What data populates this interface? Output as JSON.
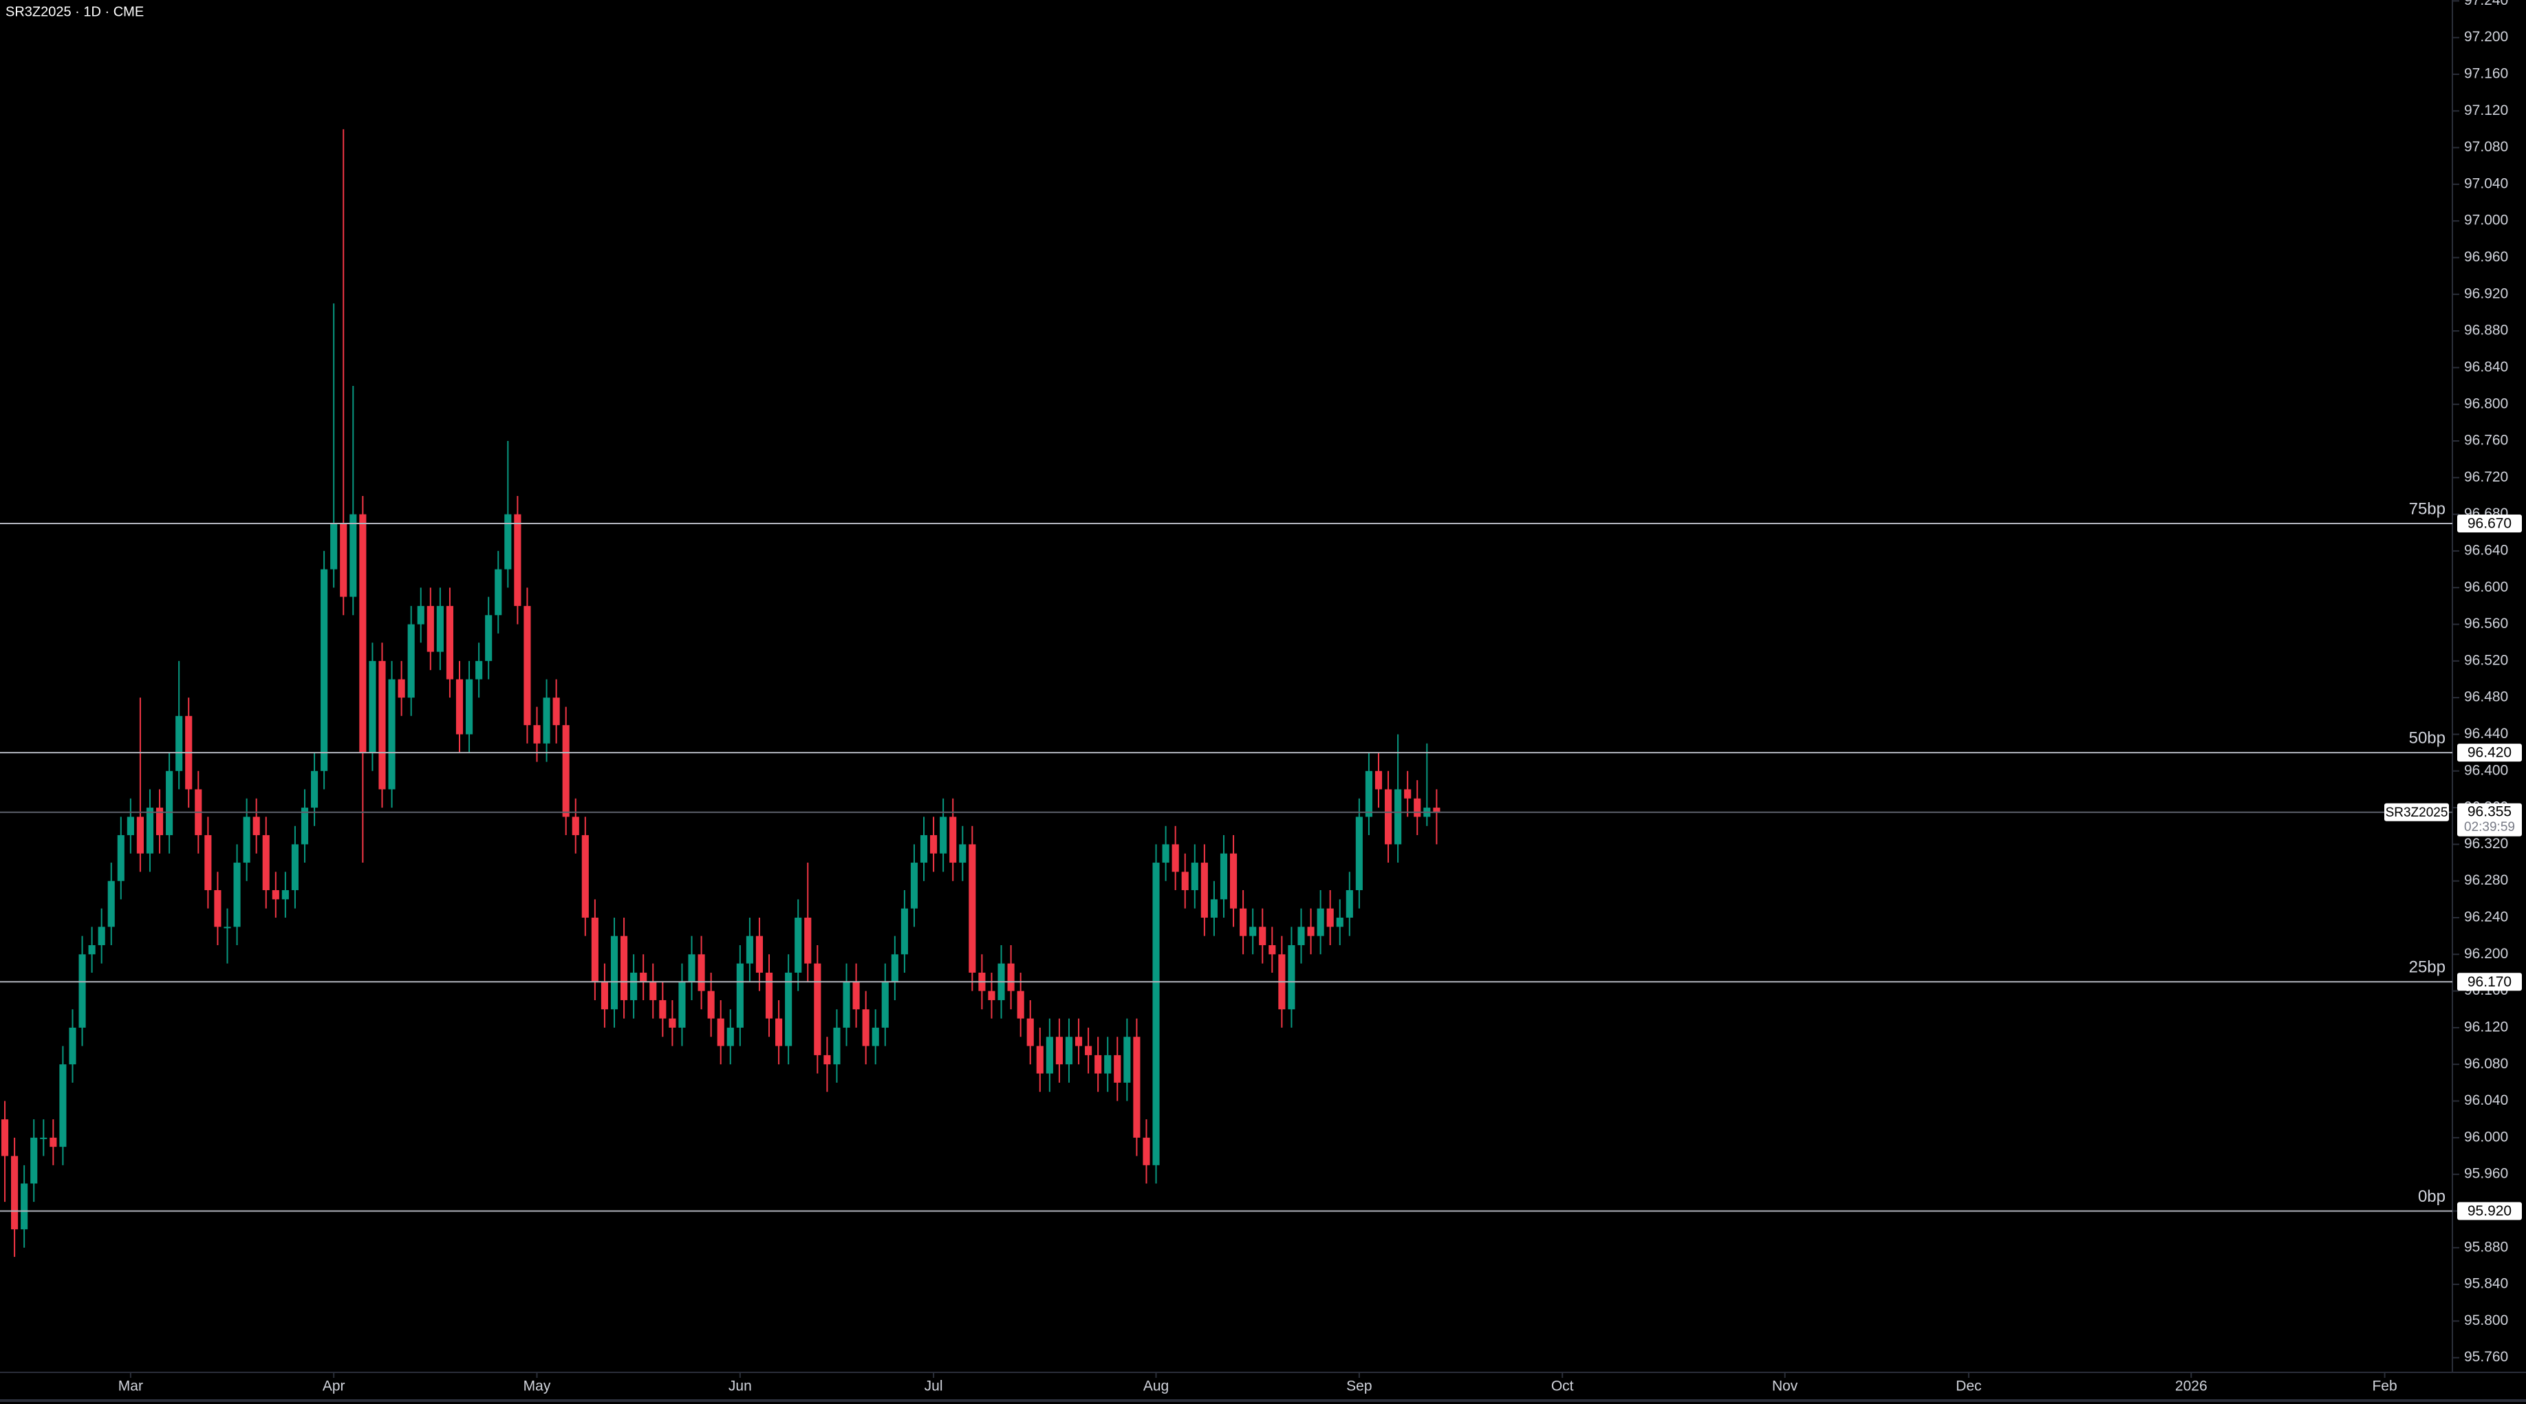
{
  "chart_data": {
    "type": "candlestick",
    "title": "SR3Z2025 · 1D · CME",
    "up_color": "#089981",
    "down_color": "#f23645",
    "open": [
      96.02,
      95.98,
      95.9,
      95.95,
      96.0,
      96.0,
      95.99,
      96.08,
      96.12,
      96.2,
      96.21,
      96.23,
      96.28,
      96.33,
      96.35,
      96.31,
      96.36,
      96.33,
      96.4,
      96.46,
      96.38,
      96.33,
      96.27,
      96.23,
      96.23,
      96.3,
      96.35,
      96.33,
      96.27,
      96.26,
      96.27,
      96.32,
      96.36,
      96.4,
      96.62,
      96.67,
      96.59,
      96.68,
      96.42,
      96.52,
      96.38,
      96.5,
      96.48,
      96.56,
      96.58,
      96.53,
      96.58,
      96.5,
      96.44,
      96.5,
      96.52,
      96.57,
      96.62,
      96.68,
      96.58,
      96.45,
      96.43,
      96.48,
      96.45,
      96.35,
      96.33,
      96.24,
      96.17,
      96.14,
      96.22,
      96.15,
      96.18,
      96.17,
      96.15,
      96.13,
      96.12,
      96.17,
      96.2,
      96.16,
      96.13,
      96.1,
      96.12,
      96.19,
      96.22,
      96.18,
      96.13,
      96.1,
      96.18,
      96.24,
      96.19,
      96.09,
      96.08,
      96.12,
      96.17,
      96.14,
      96.1,
      96.12,
      96.17,
      96.2,
      96.25,
      96.3,
      96.33,
      96.31,
      96.35,
      96.3,
      96.32,
      96.18,
      96.16,
      96.15,
      96.19,
      96.16,
      96.13,
      96.1,
      96.07,
      96.11,
      96.08,
      96.11,
      96.1,
      96.09,
      96.07,
      96.09,
      96.06,
      96.11,
      96.0,
      95.97,
      96.3,
      96.32,
      96.29,
      96.27,
      96.3,
      96.24,
      96.26,
      96.31,
      96.25,
      96.22,
      96.23,
      96.21,
      96.2,
      96.14,
      96.21,
      96.23,
      96.22,
      96.25,
      96.23,
      96.24,
      96.27,
      96.35,
      96.4,
      96.38,
      96.32,
      96.38,
      96.37,
      96.35,
      96.36
    ],
    "high": [
      96.04,
      96.0,
      95.97,
      96.02,
      96.02,
      96.02,
      96.1,
      96.14,
      96.22,
      96.23,
      96.25,
      96.3,
      96.35,
      96.37,
      96.48,
      96.38,
      96.38,
      96.42,
      96.52,
      96.48,
      96.4,
      96.35,
      96.29,
      96.25,
      96.32,
      96.37,
      96.37,
      96.35,
      96.29,
      96.29,
      96.34,
      96.38,
      96.42,
      96.64,
      96.91,
      97.1,
      96.82,
      96.7,
      96.54,
      96.54,
      96.52,
      96.52,
      96.58,
      96.6,
      96.6,
      96.6,
      96.6,
      96.52,
      96.52,
      96.54,
      96.59,
      96.64,
      96.76,
      96.7,
      96.6,
      96.47,
      96.5,
      96.5,
      96.47,
      96.37,
      96.35,
      96.26,
      96.19,
      96.24,
      96.24,
      96.2,
      96.2,
      96.19,
      96.17,
      96.15,
      96.19,
      96.22,
      96.22,
      96.18,
      96.15,
      96.14,
      96.21,
      96.24,
      96.24,
      96.2,
      96.15,
      96.2,
      96.26,
      96.3,
      96.21,
      96.11,
      96.14,
      96.19,
      96.19,
      96.16,
      96.14,
      96.19,
      96.22,
      96.27,
      96.32,
      96.35,
      96.35,
      96.37,
      96.37,
      96.34,
      96.34,
      96.2,
      96.18,
      96.21,
      96.21,
      96.18,
      96.15,
      96.12,
      96.13,
      96.13,
      96.13,
      96.13,
      96.12,
      96.11,
      96.11,
      96.11,
      96.13,
      96.13,
      96.02,
      96.32,
      96.34,
      96.34,
      96.31,
      96.32,
      96.32,
      96.28,
      96.33,
      96.33,
      96.27,
      96.25,
      96.25,
      96.23,
      96.22,
      96.23,
      96.25,
      96.25,
      96.27,
      96.27,
      96.26,
      96.29,
      96.37,
      96.42,
      96.42,
      96.4,
      96.44,
      96.4,
      96.39,
      96.43,
      96.38
    ],
    "low": [
      95.93,
      95.87,
      95.88,
      95.93,
      95.98,
      95.97,
      95.97,
      96.06,
      96.1,
      96.18,
      96.19,
      96.21,
      96.26,
      96.31,
      96.29,
      96.29,
      96.31,
      96.31,
      96.38,
      96.36,
      96.31,
      96.25,
      96.21,
      96.19,
      96.21,
      96.28,
      96.31,
      96.25,
      96.24,
      96.24,
      96.25,
      96.3,
      96.34,
      96.38,
      96.6,
      96.57,
      96.57,
      96.3,
      96.4,
      96.36,
      96.36,
      96.46,
      96.46,
      96.54,
      96.51,
      96.51,
      96.48,
      96.42,
      96.42,
      96.48,
      96.5,
      96.55,
      96.6,
      96.56,
      96.43,
      96.41,
      96.41,
      96.43,
      96.33,
      96.31,
      96.22,
      96.15,
      96.12,
      96.12,
      96.13,
      96.13,
      96.15,
      96.13,
      96.11,
      96.1,
      96.1,
      96.15,
      96.14,
      96.11,
      96.08,
      96.08,
      96.1,
      96.17,
      96.16,
      96.11,
      96.08,
      96.08,
      96.16,
      96.17,
      96.07,
      96.05,
      96.06,
      96.1,
      96.12,
      96.08,
      96.08,
      96.1,
      96.15,
      96.18,
      96.23,
      96.28,
      96.29,
      96.29,
      96.28,
      96.28,
      96.16,
      96.14,
      96.13,
      96.13,
      96.14,
      96.11,
      96.08,
      96.05,
      96.05,
      96.06,
      96.06,
      96.08,
      96.07,
      96.05,
      96.05,
      96.04,
      96.04,
      95.98,
      95.95,
      95.95,
      96.28,
      96.27,
      96.25,
      96.25,
      96.22,
      96.22,
      96.24,
      96.23,
      96.2,
      96.2,
      96.19,
      96.18,
      96.12,
      96.12,
      96.19,
      96.2,
      96.2,
      96.21,
      96.21,
      96.22,
      96.25,
      96.33,
      96.36,
      96.3,
      96.3,
      96.35,
      96.33,
      96.34,
      96.32
    ],
    "close": [
      95.98,
      95.9,
      95.95,
      96.0,
      96.0,
      95.99,
      96.08,
      96.12,
      96.2,
      96.21,
      96.23,
      96.28,
      96.33,
      96.35,
      96.31,
      96.36,
      96.33,
      96.4,
      96.46,
      96.38,
      96.33,
      96.27,
      96.23,
      96.23,
      96.3,
      96.35,
      96.33,
      96.27,
      96.26,
      96.27,
      96.32,
      96.36,
      96.4,
      96.62,
      96.67,
      96.59,
      96.68,
      96.42,
      96.52,
      96.38,
      96.5,
      96.48,
      96.56,
      96.58,
      96.53,
      96.58,
      96.5,
      96.44,
      96.5,
      96.52,
      96.57,
      96.62,
      96.68,
      96.58,
      96.45,
      96.43,
      96.48,
      96.45,
      96.35,
      96.33,
      96.24,
      96.17,
      96.14,
      96.22,
      96.15,
      96.18,
      96.17,
      96.15,
      96.13,
      96.12,
      96.17,
      96.2,
      96.16,
      96.13,
      96.1,
      96.12,
      96.19,
      96.22,
      96.18,
      96.13,
      96.1,
      96.18,
      96.24,
      96.19,
      96.09,
      96.08,
      96.12,
      96.17,
      96.14,
      96.1,
      96.12,
      96.17,
      96.2,
      96.25,
      96.3,
      96.33,
      96.31,
      96.35,
      96.3,
      96.32,
      96.18,
      96.16,
      96.15,
      96.19,
      96.16,
      96.13,
      96.1,
      96.07,
      96.11,
      96.08,
      96.11,
      96.1,
      96.09,
      96.07,
      96.09,
      96.06,
      96.11,
      96.0,
      95.97,
      96.3,
      96.32,
      96.29,
      96.27,
      96.3,
      96.24,
      96.26,
      96.31,
      96.25,
      96.22,
      96.23,
      96.21,
      96.2,
      96.14,
      96.21,
      96.23,
      96.22,
      96.25,
      96.23,
      96.24,
      96.27,
      96.35,
      96.4,
      96.38,
      96.32,
      96.38,
      96.37,
      96.35,
      96.36,
      96.355
    ],
    "xlim": [
      -0.5,
      253
    ],
    "xticks": [
      {
        "value": 13,
        "label": "Mar"
      },
      {
        "value": 34,
        "label": "Apr"
      },
      {
        "value": 55,
        "label": "May"
      },
      {
        "value": 76,
        "label": "Jun"
      },
      {
        "value": 96,
        "label": "Jul"
      },
      {
        "value": 119,
        "label": "Aug"
      },
      {
        "value": 140,
        "label": "Sep"
      },
      {
        "value": 161,
        "label": "Oct"
      },
      {
        "value": 184,
        "label": "Nov"
      },
      {
        "value": 203,
        "label": "Dec"
      },
      {
        "value": 226,
        "label": "2026"
      },
      {
        "value": 246,
        "label": "Feb"
      }
    ],
    "ylim": [
      95.744,
      97.241
    ],
    "yticks": [
      {
        "value": 95.76,
        "label": "95.760"
      },
      {
        "value": 95.8,
        "label": "95.800"
      },
      {
        "value": 95.84,
        "label": "95.840"
      },
      {
        "value": 95.88,
        "label": "95.880"
      },
      {
        "value": 95.92,
        "label": "95.920"
      },
      {
        "value": 95.96,
        "label": "95.960"
      },
      {
        "value": 96.0,
        "label": "96.000"
      },
      {
        "value": 96.04,
        "label": "96.040"
      },
      {
        "value": 96.08,
        "label": "96.080"
      },
      {
        "value": 96.12,
        "label": "96.120"
      },
      {
        "value": 96.16,
        "label": "96.160"
      },
      {
        "value": 96.2,
        "label": "96.200"
      },
      {
        "value": 96.24,
        "label": "96.240"
      },
      {
        "value": 96.28,
        "label": "96.280"
      },
      {
        "value": 96.32,
        "label": "96.320"
      },
      {
        "value": 96.36,
        "label": "96.360"
      },
      {
        "value": 96.4,
        "label": "96.400"
      },
      {
        "value": 96.44,
        "label": "96.440"
      },
      {
        "value": 96.48,
        "label": "96.480"
      },
      {
        "value": 96.52,
        "label": "96.520"
      },
      {
        "value": 96.56,
        "label": "96.560"
      },
      {
        "value": 96.6,
        "label": "96.600"
      },
      {
        "value": 96.64,
        "label": "96.640"
      },
      {
        "value": 96.68,
        "label": "96.680"
      },
      {
        "value": 96.72,
        "label": "96.720"
      },
      {
        "value": 96.76,
        "label": "96.760"
      },
      {
        "value": 96.8,
        "label": "96.800"
      },
      {
        "value": 96.84,
        "label": "96.840"
      },
      {
        "value": 96.88,
        "label": "96.880"
      },
      {
        "value": 96.92,
        "label": "96.920"
      },
      {
        "value": 96.96,
        "label": "96.960"
      },
      {
        "value": 97.0,
        "label": "97.000"
      },
      {
        "value": 97.04,
        "label": "97.040"
      },
      {
        "value": 97.08,
        "label": "97.080"
      },
      {
        "value": 97.12,
        "label": "97.120"
      },
      {
        "value": 97.16,
        "label": "97.160"
      },
      {
        "value": 97.2,
        "label": "97.200"
      },
      {
        "value": 97.24,
        "label": "97.240"
      }
    ],
    "price_lines": [
      {
        "label": "75bp",
        "value": 96.67,
        "value_label": "96.670"
      },
      {
        "label": "50bp",
        "value": 96.42,
        "value_label": "96.420"
      },
      {
        "label": "25bp",
        "value": 96.17,
        "value_label": "96.170"
      },
      {
        "label": "0bp",
        "value": 95.92,
        "value_label": "95.920"
      }
    ],
    "last_price": {
      "symbol": "SR3Z2025",
      "value": 96.355,
      "value_label": "96.355",
      "countdown": "02:39:59"
    }
  }
}
